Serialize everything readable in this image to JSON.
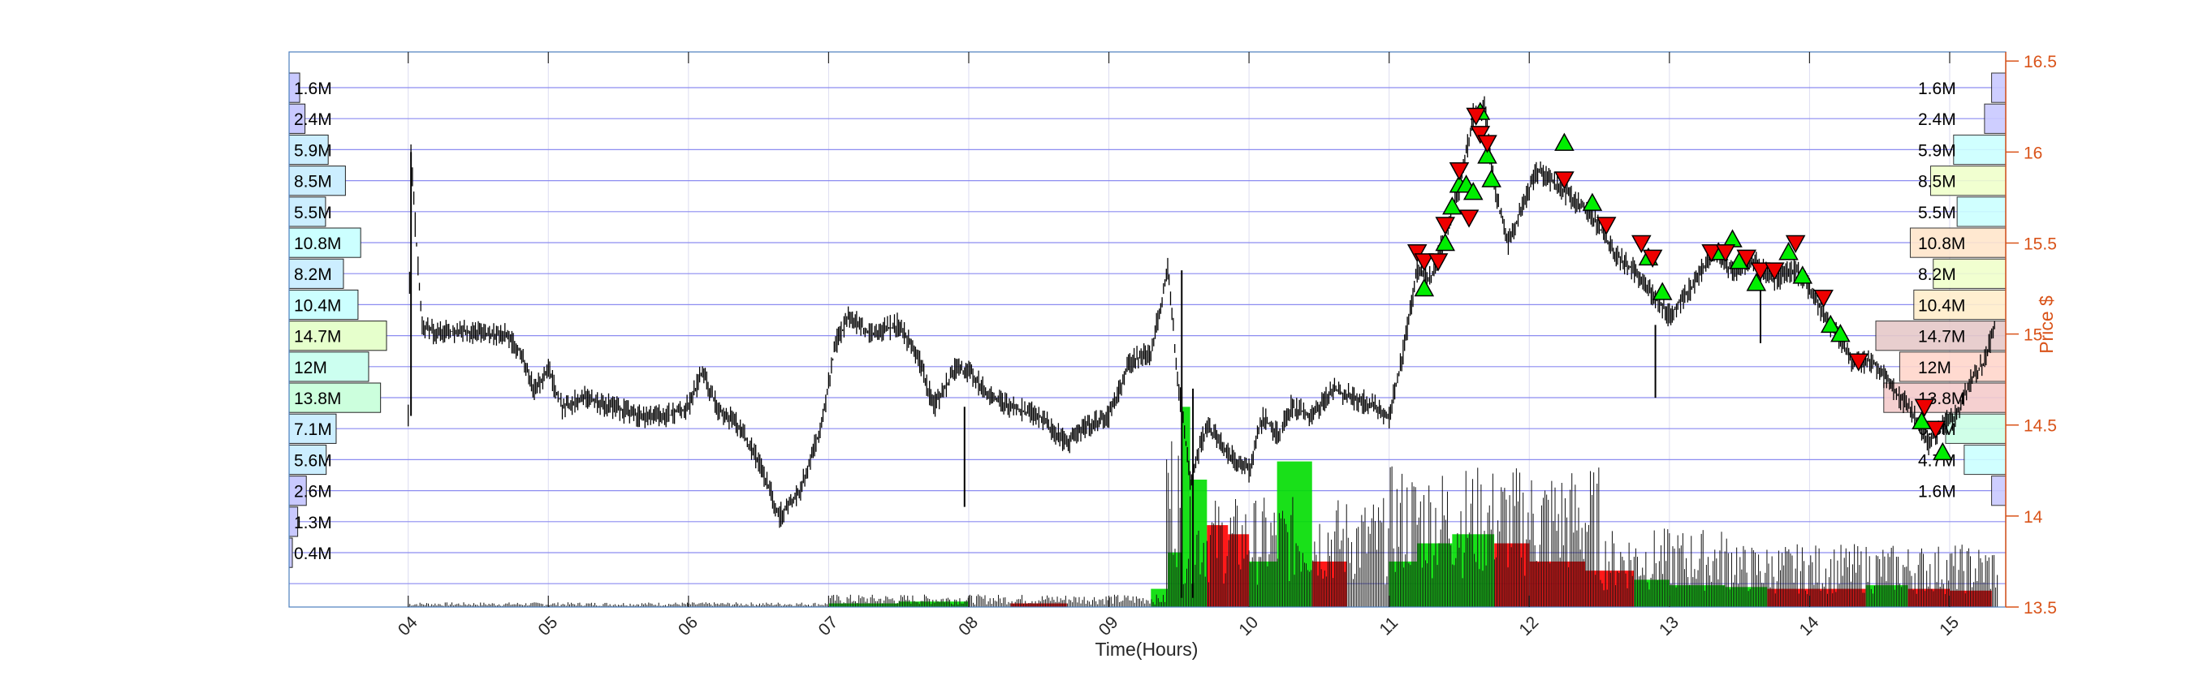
{
  "chart_data": {
    "type": "candlestick",
    "xlabel": "Time(Hours)",
    "ylabel": "Price $",
    "x_ticks": [
      "04",
      "05",
      "06",
      "07",
      "08",
      "09",
      "10",
      "11",
      "12",
      "13",
      "14",
      "15"
    ],
    "x_tick_values": [
      4,
      5,
      6,
      7,
      8,
      9,
      10,
      11,
      12,
      13,
      14,
      15
    ],
    "xlim": [
      3.15,
      15.4
    ],
    "y_ticks": [
      "13.5",
      "14",
      "14.5",
      "15",
      "15.5",
      "16",
      "16.5"
    ],
    "ylim": [
      13.5,
      16.55
    ],
    "grid": true,
    "y_axis_side": "right",
    "y_axis_color": "#d95319",
    "price_path": [
      [
        4.0,
        14.55
      ],
      [
        4.02,
        16.0
      ],
      [
        4.05,
        15.6
      ],
      [
        4.1,
        15.05
      ],
      [
        4.2,
        15.0
      ],
      [
        4.35,
        15.02
      ],
      [
        4.55,
        15.0
      ],
      [
        4.7,
        15.0
      ],
      [
        4.8,
        14.9
      ],
      [
        4.9,
        14.7
      ],
      [
        5.0,
        14.8
      ],
      [
        5.1,
        14.6
      ],
      [
        5.25,
        14.65
      ],
      [
        5.45,
        14.6
      ],
      [
        5.65,
        14.55
      ],
      [
        5.85,
        14.55
      ],
      [
        6.0,
        14.6
      ],
      [
        6.1,
        14.8
      ],
      [
        6.2,
        14.6
      ],
      [
        6.35,
        14.5
      ],
      [
        6.5,
        14.3
      ],
      [
        6.65,
        14.0
      ],
      [
        6.8,
        14.15
      ],
      [
        6.95,
        14.5
      ],
      [
        7.05,
        14.95
      ],
      [
        7.15,
        15.1
      ],
      [
        7.3,
        15.0
      ],
      [
        7.5,
        15.05
      ],
      [
        7.65,
        14.85
      ],
      [
        7.75,
        14.6
      ],
      [
        7.9,
        14.8
      ],
      [
        8.0,
        14.8
      ],
      [
        8.1,
        14.7
      ],
      [
        8.3,
        14.6
      ],
      [
        8.5,
        14.55
      ],
      [
        8.7,
        14.4
      ],
      [
        8.85,
        14.5
      ],
      [
        9.0,
        14.55
      ],
      [
        9.15,
        14.85
      ],
      [
        9.3,
        14.9
      ],
      [
        9.42,
        15.35
      ],
      [
        9.5,
        14.7
      ],
      [
        9.58,
        14.2
      ],
      [
        9.7,
        14.5
      ],
      [
        9.85,
        14.35
      ],
      [
        10.0,
        14.25
      ],
      [
        10.1,
        14.55
      ],
      [
        10.2,
        14.45
      ],
      [
        10.3,
        14.6
      ],
      [
        10.45,
        14.55
      ],
      [
        10.6,
        14.7
      ],
      [
        10.75,
        14.65
      ],
      [
        10.9,
        14.6
      ],
      [
        11.0,
        14.55
      ],
      [
        11.1,
        14.9
      ],
      [
        11.2,
        15.35
      ],
      [
        11.3,
        15.3
      ],
      [
        11.4,
        15.55
      ],
      [
        11.5,
        15.8
      ],
      [
        11.6,
        16.2
      ],
      [
        11.68,
        16.25
      ],
      [
        11.75,
        15.8
      ],
      [
        11.85,
        15.5
      ],
      [
        11.95,
        15.7
      ],
      [
        12.05,
        15.9
      ],
      [
        12.15,
        15.85
      ],
      [
        12.3,
        15.75
      ],
      [
        12.45,
        15.65
      ],
      [
        12.6,
        15.45
      ],
      [
        12.75,
        15.35
      ],
      [
        12.9,
        15.2
      ],
      [
        13.0,
        15.1
      ],
      [
        13.1,
        15.2
      ],
      [
        13.2,
        15.3
      ],
      [
        13.3,
        15.45
      ],
      [
        13.45,
        15.35
      ],
      [
        13.6,
        15.4
      ],
      [
        13.75,
        15.3
      ],
      [
        13.9,
        15.35
      ],
      [
        14.0,
        15.25
      ],
      [
        14.1,
        15.1
      ],
      [
        14.2,
        15.0
      ],
      [
        14.3,
        14.85
      ],
      [
        14.45,
        14.85
      ],
      [
        14.6,
        14.7
      ],
      [
        14.75,
        14.55
      ],
      [
        14.85,
        14.4
      ],
      [
        14.95,
        14.5
      ],
      [
        15.05,
        14.55
      ],
      [
        15.15,
        14.75
      ],
      [
        15.25,
        14.85
      ],
      [
        15.32,
        15.05
      ]
    ],
    "spike_bars": [
      [
        4.02,
        14.55,
        16.0
      ],
      [
        7.97,
        14.05,
        14.6
      ],
      [
        9.52,
        13.55,
        15.35
      ],
      [
        9.6,
        13.55,
        14.7
      ],
      [
        12.9,
        14.65,
        15.05
      ],
      [
        13.65,
        14.95,
        15.35
      ]
    ],
    "volume_bars": [
      {
        "x0": 7.0,
        "x1": 7.5,
        "top": 13.52,
        "color": "#00dd00"
      },
      {
        "x0": 7.5,
        "x1": 8.0,
        "top": 13.53,
        "color": "#00dd00"
      },
      {
        "x0": 8.3,
        "x1": 8.7,
        "top": 13.52,
        "color": "#ff0000"
      },
      {
        "x0": 9.3,
        "x1": 9.42,
        "top": 13.6,
        "color": "#00dd00"
      },
      {
        "x0": 9.42,
        "x1": 9.52,
        "top": 13.8,
        "color": "#00dd00"
      },
      {
        "x0": 9.52,
        "x1": 9.58,
        "top": 14.6,
        "color": "#00dd00"
      },
      {
        "x0": 9.58,
        "x1": 9.7,
        "top": 14.2,
        "color": "#00dd00"
      },
      {
        "x0": 9.7,
        "x1": 9.85,
        "top": 13.95,
        "color": "#ff0000"
      },
      {
        "x0": 9.85,
        "x1": 10.0,
        "top": 13.9,
        "color": "#ff0000"
      },
      {
        "x0": 10.0,
        "x1": 10.2,
        "top": 13.75,
        "color": "#00dd00"
      },
      {
        "x0": 10.2,
        "x1": 10.45,
        "top": 14.3,
        "color": "#00dd00"
      },
      {
        "x0": 10.45,
        "x1": 10.7,
        "top": 13.75,
        "color": "#ff0000"
      },
      {
        "x0": 11.0,
        "x1": 11.2,
        "top": 13.75,
        "color": "#00dd00"
      },
      {
        "x0": 11.2,
        "x1": 11.45,
        "top": 13.85,
        "color": "#00dd00"
      },
      {
        "x0": 11.45,
        "x1": 11.75,
        "top": 13.9,
        "color": "#00dd00"
      },
      {
        "x0": 11.75,
        "x1": 12.0,
        "top": 13.85,
        "color": "#ff0000"
      },
      {
        "x0": 12.0,
        "x1": 12.4,
        "top": 13.75,
        "color": "#ff0000"
      },
      {
        "x0": 12.4,
        "x1": 12.75,
        "top": 13.7,
        "color": "#ff0000"
      },
      {
        "x0": 12.75,
        "x1": 13.0,
        "top": 13.65,
        "color": "#00dd00"
      },
      {
        "x0": 13.0,
        "x1": 13.4,
        "top": 13.62,
        "color": "#00dd00"
      },
      {
        "x0": 13.4,
        "x1": 13.7,
        "top": 13.61,
        "color": "#00dd00"
      },
      {
        "x0": 13.7,
        "x1": 14.1,
        "top": 13.6,
        "color": "#ff0000"
      },
      {
        "x0": 14.1,
        "x1": 14.4,
        "top": 13.6,
        "color": "#ff0000"
      },
      {
        "x0": 14.4,
        "x1": 14.7,
        "top": 13.62,
        "color": "#00dd00"
      },
      {
        "x0": 14.7,
        "x1": 15.0,
        "top": 13.6,
        "color": "#ff0000"
      },
      {
        "x0": 15.0,
        "x1": 15.3,
        "top": 13.59,
        "color": "#ff0000"
      }
    ],
    "buy_signals": [
      [
        11.25,
        15.25
      ],
      [
        11.4,
        15.5
      ],
      [
        11.45,
        15.7
      ],
      [
        11.5,
        15.82
      ],
      [
        11.55,
        15.82
      ],
      [
        11.6,
        15.78
      ],
      [
        11.65,
        16.22
      ],
      [
        11.7,
        15.98
      ],
      [
        11.73,
        15.85
      ],
      [
        12.25,
        16.05
      ],
      [
        12.45,
        15.72
      ],
      [
        12.85,
        15.42
      ],
      [
        12.95,
        15.23
      ],
      [
        13.35,
        15.45
      ],
      [
        13.45,
        15.52
      ],
      [
        13.5,
        15.4
      ],
      [
        13.62,
        15.28
      ],
      [
        13.85,
        15.45
      ],
      [
        13.95,
        15.32
      ],
      [
        14.15,
        15.05
      ],
      [
        14.22,
        15.0
      ],
      [
        14.8,
        14.52
      ],
      [
        14.95,
        14.35
      ]
    ],
    "sell_signals": [
      [
        11.2,
        15.45
      ],
      [
        11.25,
        15.4
      ],
      [
        11.35,
        15.4
      ],
      [
        11.4,
        15.6
      ],
      [
        11.5,
        15.9
      ],
      [
        11.57,
        15.64
      ],
      [
        11.62,
        16.2
      ],
      [
        11.65,
        16.1
      ],
      [
        11.7,
        16.05
      ],
      [
        12.25,
        15.85
      ],
      [
        12.55,
        15.6
      ],
      [
        12.8,
        15.5
      ],
      [
        12.88,
        15.42
      ],
      [
        13.3,
        15.45
      ],
      [
        13.4,
        15.45
      ],
      [
        13.55,
        15.42
      ],
      [
        13.65,
        15.35
      ],
      [
        13.75,
        15.35
      ],
      [
        13.9,
        15.5
      ],
      [
        14.1,
        15.2
      ],
      [
        14.35,
        14.85
      ],
      [
        14.82,
        14.6
      ],
      [
        14.9,
        14.48
      ]
    ],
    "volume_profile_left": {
      "labels": [
        "1.6M",
        "2.4M",
        "5.9M",
        "8.5M",
        "5.5M",
        "10.8M",
        "8.2M",
        "10.4M",
        "14.7M",
        "12M",
        "13.8M",
        "7.1M",
        "5.6M",
        "2.6M",
        "1.3M",
        "0.4M"
      ],
      "values": [
        1.6,
        2.4,
        5.9,
        8.5,
        5.5,
        10.8,
        8.2,
        10.4,
        14.7,
        12,
        13.8,
        7.1,
        5.6,
        2.6,
        1.3,
        0.4
      ],
      "colors": [
        "#c9c9ff",
        "#c9c9ff",
        "#cceeff",
        "#cceeff",
        "#cceeff",
        "#ccffff",
        "#cceeff",
        "#ccffff",
        "#e6ffcc",
        "#ccfff0",
        "#ccffdd",
        "#cceeff",
        "#cceeff",
        "#c9c9ff",
        "#c9c9ff",
        "#c9c9ff"
      ]
    },
    "volume_profile_right": {
      "labels": [
        "1.6M",
        "2.4M",
        "5.9M",
        "8.5M",
        "5.5M",
        "10.8M",
        "8.2M",
        "10.4M",
        "14.7M",
        "12M",
        "13.8M",
        "6.8M",
        "4.7M",
        "1.6M"
      ],
      "values": [
        1.6,
        2.4,
        5.9,
        8.5,
        5.5,
        10.8,
        8.2,
        10.4,
        14.7,
        12,
        13.8,
        6.8,
        4.7,
        1.6
      ],
      "colors": [
        "#c9c9ff",
        "#c9c9ff",
        "#ccffff",
        "#f0ffcc",
        "#ccffff",
        "#ffe6cc",
        "#f0ffcc",
        "#ffeecc",
        "#e6c9c9",
        "#ffd6cc",
        "#f5cccc",
        "#ccffe6",
        "#ccffff",
        "#c9c9ff"
      ]
    }
  }
}
